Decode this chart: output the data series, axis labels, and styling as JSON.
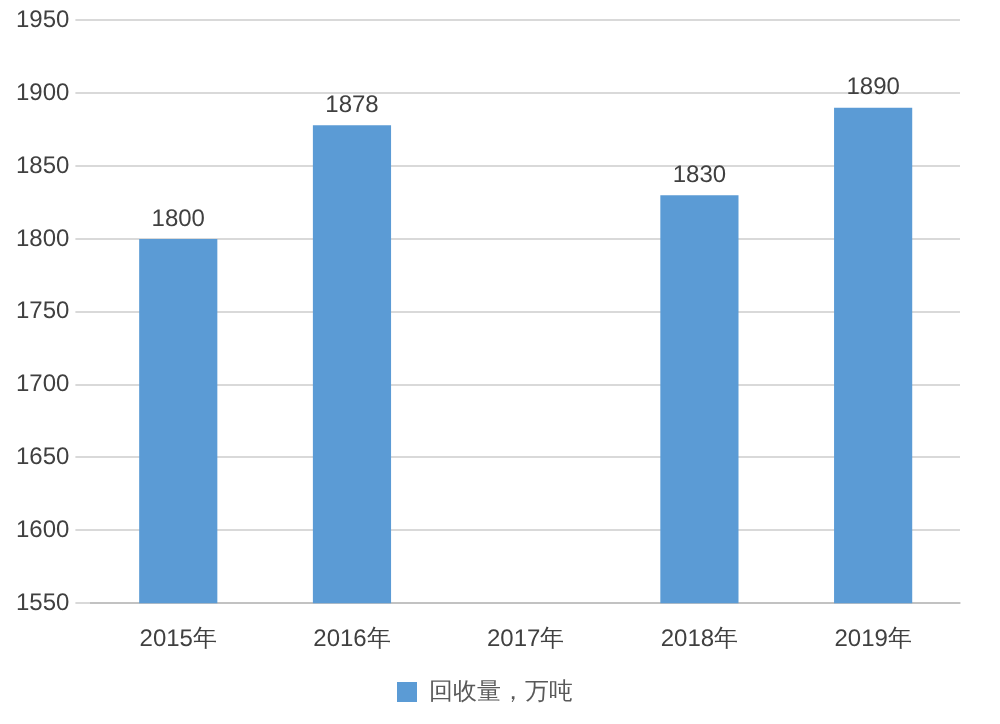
{
  "chart_data": {
    "type": "bar",
    "categories": [
      "2015年",
      "2016年",
      "2017年",
      "2018年",
      "2019年"
    ],
    "series": [
      {
        "name": "回收量，万吨",
        "color": "#5b9bd5",
        "values": [
          1800,
          1878,
          null,
          1830,
          1890
        ]
      }
    ],
    "ylim": [
      1550,
      1950
    ],
    "yticks": [
      1550,
      1600,
      1650,
      1700,
      1750,
      1800,
      1850,
      1900,
      1950
    ],
    "grid": "y",
    "legend": "bottom",
    "data_labels": true
  }
}
